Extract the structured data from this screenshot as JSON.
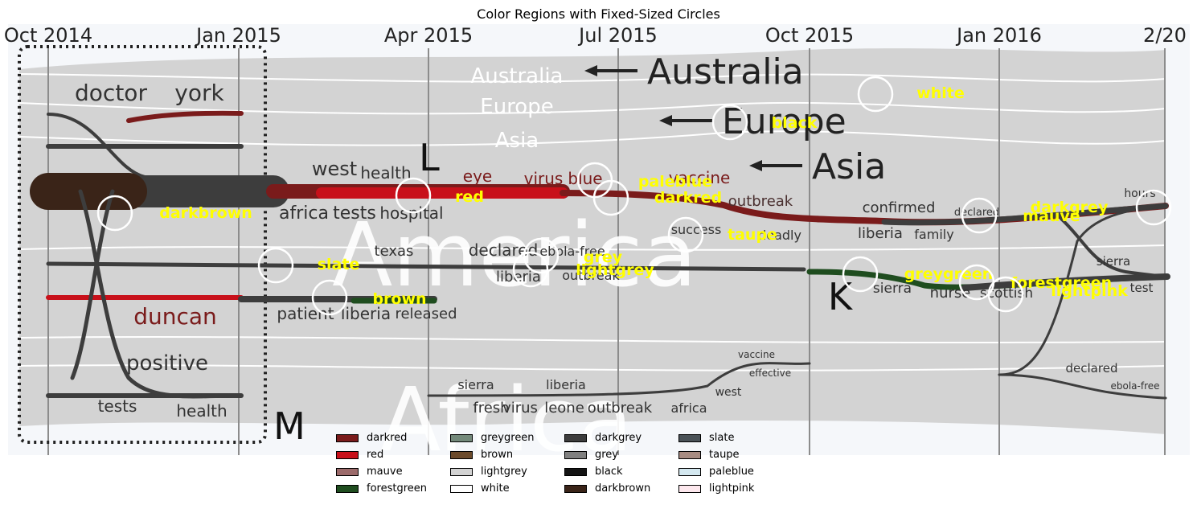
{
  "chart_data": {
    "type": "other",
    "title": "Color Regions with Fixed-Sized Circles",
    "time_axis_labels": [
      "Oct 2014",
      "Jan 2015",
      "Apr 2015",
      "Jul 2015",
      "Oct 2015",
      "Jan 2016",
      "2/20"
    ],
    "region_labels": [
      "America",
      "Africa"
    ],
    "stream_labels": [
      "Australia",
      "Europe",
      "Asia"
    ],
    "panel_letters": [
      "L",
      "M",
      "K"
    ],
    "topic_words": [
      "doctor",
      "york",
      "west",
      "health",
      "eye",
      "virus",
      "blue",
      "vaccine",
      "africa",
      "tests",
      "hospital",
      "outbreak",
      "confirmed",
      "declared",
      "hours",
      "success",
      "deadly",
      "liberia",
      "family",
      "texas",
      "declared",
      "ebola-free",
      "liberia",
      "outbreak",
      "sierra",
      "duncan",
      "patient",
      "liberia",
      "released",
      "sierra",
      "nurse",
      "scottish",
      "test",
      "positive",
      "vaccine",
      "effective",
      "west",
      "sierra",
      "liberia",
      "fresh",
      "virus",
      "leone",
      "outbreak",
      "africa",
      "tests",
      "health",
      "declared",
      "ebola-free"
    ],
    "annotations": [
      {
        "label": "white"
      },
      {
        "label": "black"
      },
      {
        "label": "paleblue"
      },
      {
        "label": "darkred"
      },
      {
        "label": "red"
      },
      {
        "label": "darkbrown"
      },
      {
        "label": "taupe"
      },
      {
        "label": "grey"
      },
      {
        "label": "lightgrey"
      },
      {
        "label": "slate"
      },
      {
        "label": "brown"
      },
      {
        "label": "greygreen"
      },
      {
        "label": "forestgreen"
      },
      {
        "label": "lightpink"
      },
      {
        "label": "darkgrey"
      },
      {
        "label": "mauve"
      }
    ],
    "legend": {
      "placement": "bottom",
      "entries": [
        {
          "name": "darkred",
          "color": "#7a1b1b"
        },
        {
          "name": "red",
          "color": "#c8101a"
        },
        {
          "name": "mauve",
          "color": "#9c6b6b"
        },
        {
          "name": "forestgreen",
          "color": "#1f4d1f"
        },
        {
          "name": "greygreen",
          "color": "#73897a"
        },
        {
          "name": "brown",
          "color": "#6b4a2b"
        },
        {
          "name": "lightgrey",
          "color": "#d3d3d3"
        },
        {
          "name": "white",
          "color": "#ffffff"
        },
        {
          "name": "darkgrey",
          "color": "#3d3d3d"
        },
        {
          "name": "grey",
          "color": "#808080"
        },
        {
          "name": "black",
          "color": "#141414"
        },
        {
          "name": "darkbrown",
          "color": "#3a2418"
        },
        {
          "name": "slate",
          "color": "#4a5257"
        },
        {
          "name": "taupe",
          "color": "#a88c82"
        },
        {
          "name": "paleblue",
          "color": "#d4e8f0"
        },
        {
          "name": "lightpink",
          "color": "#fde8ee"
        }
      ]
    },
    "annotation_color": "#ffff00",
    "circle_color": "#ffffff",
    "background_band_color": "#d3d3d3"
  }
}
